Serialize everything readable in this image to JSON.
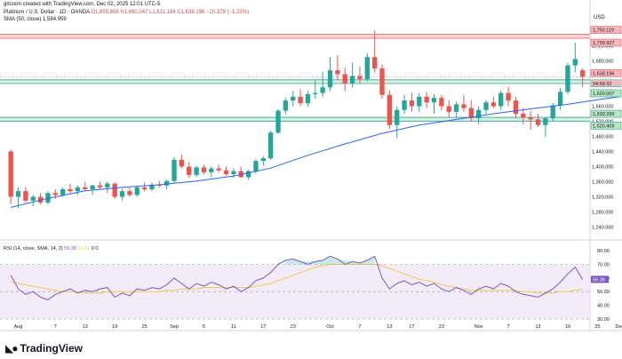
{
  "credit": "gmzern created with TradingView.com, Dec 02, 2025 12:01 UTC-5",
  "legend": {
    "symbol": "Platinum / U.S. Dollar · 1D · OANDA",
    "ohlc": "O1,655.656 H1,660.047 L1,611.184 C1,638.196 −20.378 (−1.23%)",
    "sma": "SMA (50, close) 1,584.959"
  },
  "currency": "USD",
  "brand": "TradingView",
  "rsi_legend": {
    "label": "RSI (14, close, SMA, 14, 2)",
    "rsi": "59.38",
    "sma": "51.61",
    "extra": "0 0"
  },
  "colors": {
    "up": "#26a69a",
    "down": "#ef5350",
    "sma": "#2962ff",
    "rsi": "#7e57c2",
    "rsi_sma": "#f7c948",
    "zone_red": "#f8d7da",
    "zone_green": "#d7f0d9"
  },
  "chart_data": [
    {
      "type": "candlestick",
      "title": "Platinum / U.S. Dollar · 1D · OANDA",
      "ylim": [
        1220,
        1780
      ],
      "y_ticks": [
        "1,720.000",
        "1,680.000",
        "1,600.000",
        "1,560.000",
        "1,520.000",
        "1,480.000",
        "1,440.000",
        "1,400.000",
        "1,360.000",
        "1,320.000",
        "1,280.000",
        "1,240.000"
      ],
      "y_tick_values": [
        1720,
        1680,
        1600,
        1560,
        1520,
        1480,
        1440,
        1400,
        1360,
        1320,
        1280,
        1240
      ],
      "x_ticks": [
        "Aug",
        "7",
        "13",
        "19",
        "25",
        "Sep",
        "5",
        "11",
        "17",
        "23",
        "Oct",
        "7",
        "13",
        "17",
        "23",
        "Nov",
        "7",
        "13",
        "19",
        "25",
        "Dec"
      ],
      "x_tick_index": [
        1,
        6,
        10,
        14,
        18,
        22,
        26,
        30,
        34,
        38,
        43,
        47,
        51,
        54,
        58,
        63,
        67,
        71,
        75,
        79,
        82
      ],
      "zones": [
        {
          "low": 1739.927,
          "high": 1750.119,
          "color": "red"
        },
        {
          "low": 1620.007,
          "high": 1629.828,
          "color": "green"
        },
        {
          "low": 1520.409,
          "high": 1530.399,
          "color": "green"
        }
      ],
      "price_labels": [
        {
          "value": 1750.119,
          "text": "1,750.119",
          "color": "red"
        },
        {
          "value": 1739.927,
          "text": "1,739.927",
          "color": "red"
        },
        {
          "value": 1638.196,
          "text": "1,638.196",
          "color": "red"
        },
        {
          "value": 1629.828,
          "text": "1,629.828",
          "color": "green"
        },
        {
          "value": 1620.007,
          "text": "1,620.007",
          "color": "green"
        },
        {
          "value": 1530.399,
          "text": "1,530.399",
          "color": "green"
        },
        {
          "value": 1520.409,
          "text": "1,520.409",
          "color": "green"
        }
      ],
      "countdown": "04:58:32",
      "candles": [
        [
          1440,
          1445,
          1300,
          1320
        ],
        [
          1320,
          1345,
          1290,
          1335
        ],
        [
          1335,
          1345,
          1305,
          1310
        ],
        [
          1310,
          1325,
          1295,
          1320
        ],
        [
          1320,
          1330,
          1300,
          1305
        ],
        [
          1305,
          1335,
          1300,
          1330
        ],
        [
          1330,
          1340,
          1315,
          1325
        ],
        [
          1325,
          1345,
          1320,
          1340
        ],
        [
          1340,
          1355,
          1330,
          1335
        ],
        [
          1335,
          1350,
          1325,
          1345
        ],
        [
          1345,
          1360,
          1335,
          1340
        ],
        [
          1340,
          1352,
          1325,
          1350
        ],
        [
          1350,
          1360,
          1340,
          1345
        ],
        [
          1345,
          1360,
          1330,
          1355
        ],
        [
          1355,
          1358,
          1315,
          1320
        ],
        [
          1320,
          1340,
          1310,
          1335
        ],
        [
          1335,
          1345,
          1320,
          1325
        ],
        [
          1325,
          1350,
          1320,
          1345
        ],
        [
          1345,
          1358,
          1335,
          1340
        ],
        [
          1340,
          1358,
          1335,
          1352
        ],
        [
          1352,
          1362,
          1345,
          1350
        ],
        [
          1350,
          1365,
          1340,
          1362
        ],
        [
          1362,
          1425,
          1355,
          1418
        ],
        [
          1418,
          1432,
          1395,
          1400
        ],
        [
          1400,
          1412,
          1370,
          1378
        ],
        [
          1378,
          1402,
          1372,
          1398
        ],
        [
          1398,
          1405,
          1380,
          1385
        ],
        [
          1385,
          1400,
          1372,
          1395
        ],
        [
          1395,
          1405,
          1385,
          1390
        ],
        [
          1390,
          1400,
          1375,
          1380
        ],
        [
          1380,
          1395,
          1370,
          1388
        ],
        [
          1388,
          1400,
          1370,
          1372
        ],
        [
          1372,
          1392,
          1365,
          1388
        ],
        [
          1388,
          1420,
          1382,
          1415
        ],
        [
          1415,
          1428,
          1402,
          1422
        ],
        [
          1422,
          1495,
          1418,
          1490
        ],
        [
          1490,
          1552,
          1486,
          1548
        ],
        [
          1548,
          1582,
          1538,
          1575
        ],
        [
          1575,
          1600,
          1560,
          1585
        ],
        [
          1585,
          1605,
          1560,
          1568
        ],
        [
          1568,
          1600,
          1558,
          1592
        ],
        [
          1592,
          1628,
          1580,
          1595
        ],
        [
          1595,
          1650,
          1585,
          1610
        ],
        [
          1610,
          1690,
          1600,
          1655
        ],
        [
          1655,
          1695,
          1630,
          1645
        ],
        [
          1645,
          1662,
          1600,
          1620
        ],
        [
          1620,
          1675,
          1610,
          1640
        ],
        [
          1640,
          1665,
          1620,
          1632
        ],
        [
          1632,
          1700,
          1625,
          1690
        ],
        [
          1690,
          1760,
          1650,
          1660
        ],
        [
          1660,
          1670,
          1580,
          1590
        ],
        [
          1590,
          1602,
          1500,
          1510
        ],
        [
          1510,
          1560,
          1475,
          1550
        ],
        [
          1550,
          1590,
          1540,
          1575
        ],
        [
          1575,
          1595,
          1545,
          1560
        ],
        [
          1560,
          1595,
          1545,
          1585
        ],
        [
          1585,
          1598,
          1555,
          1570
        ],
        [
          1570,
          1592,
          1540,
          1582
        ],
        [
          1582,
          1590,
          1548,
          1560
        ],
        [
          1560,
          1576,
          1530,
          1545
        ],
        [
          1545,
          1572,
          1530,
          1565
        ],
        [
          1565,
          1590,
          1545,
          1555
        ],
        [
          1555,
          1575,
          1520,
          1528
        ],
        [
          1528,
          1560,
          1512,
          1550
        ],
        [
          1550,
          1576,
          1540,
          1570
        ],
        [
          1570,
          1585,
          1555,
          1560
        ],
        [
          1560,
          1602,
          1550,
          1595
        ],
        [
          1595,
          1612,
          1560,
          1575
        ],
        [
          1575,
          1585,
          1528,
          1540
        ],
        [
          1540,
          1555,
          1512,
          1530
        ],
        [
          1530,
          1548,
          1498,
          1525
        ],
        [
          1525,
          1540,
          1505,
          1510
        ],
        [
          1510,
          1530,
          1478,
          1528
        ],
        [
          1528,
          1568,
          1520,
          1562
        ],
        [
          1562,
          1608,
          1550,
          1598
        ],
        [
          1598,
          1675,
          1592,
          1668
        ],
        [
          1668,
          1728,
          1650,
          1685
        ],
        [
          1655,
          1660,
          1611,
          1638
        ]
      ],
      "sma_50": [
        [
          0,
          1292
        ],
        [
          5,
          1316
        ],
        [
          10,
          1336
        ],
        [
          15,
          1345
        ],
        [
          20,
          1352
        ],
        [
          25,
          1362
        ],
        [
          30,
          1375
        ],
        [
          35,
          1396
        ],
        [
          40,
          1430
        ],
        [
          45,
          1460
        ],
        [
          50,
          1488
        ],
        [
          55,
          1510
        ],
        [
          60,
          1525
        ],
        [
          65,
          1540
        ],
        [
          70,
          1553
        ],
        [
          75,
          1565
        ],
        [
          79,
          1577
        ],
        [
          82,
          1585
        ]
      ]
    },
    {
      "type": "line",
      "title": "RSI (14, close, SMA, 14, 2)",
      "ylim": [
        28,
        84
      ],
      "y_ticks": [
        "80.00",
        "70.00",
        "60.00",
        "50.00",
        "40.00",
        "30.00"
      ],
      "y_tick_values": [
        80,
        70,
        60,
        50,
        40,
        30
      ],
      "band": [
        30,
        70
      ],
      "series": [
        {
          "name": "RSI",
          "values": [
            62,
            52,
            48,
            50,
            46,
            44,
            48,
            50,
            52,
            49,
            51,
            50,
            52,
            53,
            46,
            49,
            47,
            52,
            51,
            53,
            52,
            55,
            60,
            56,
            52,
            56,
            54,
            57,
            55,
            52,
            54,
            50,
            53,
            58,
            60,
            64,
            70,
            73,
            74,
            72,
            70,
            72,
            73,
            76,
            74,
            70,
            72,
            71,
            73,
            76,
            60,
            52,
            56,
            58,
            55,
            57,
            54,
            56,
            52,
            50,
            53,
            51,
            48,
            52,
            54,
            52,
            56,
            54,
            50,
            48,
            47,
            46,
            49,
            52,
            57,
            63,
            68,
            59
          ]
        },
        {
          "name": "RSI-based MA",
          "values": [
            57,
            56,
            55,
            54,
            53,
            52,
            51,
            50,
            50,
            50,
            49,
            49,
            49,
            50,
            50,
            50,
            50,
            50,
            50,
            50,
            50,
            51,
            51,
            52,
            52,
            52,
            53,
            53,
            53,
            53,
            53,
            53,
            53,
            54,
            55,
            56,
            58,
            60,
            62,
            64,
            66,
            68,
            69,
            70,
            70,
            70,
            70,
            70,
            70,
            70,
            69,
            67,
            65,
            63,
            61,
            59,
            58,
            57,
            55,
            54,
            53,
            52,
            51,
            51,
            51,
            51,
            51,
            51,
            51,
            50,
            50,
            49,
            49,
            49,
            50,
            50,
            51,
            51.6
          ]
        }
      ]
    }
  ]
}
